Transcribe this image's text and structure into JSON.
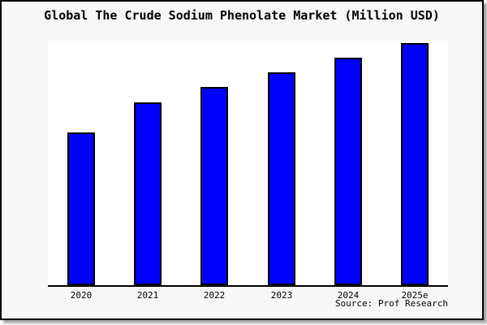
{
  "frame": {
    "background": "#f7f7f7",
    "border_color": "#000000",
    "shadow_color": "#999999"
  },
  "chart_data": {
    "type": "bar",
    "title": "Global The Crude Sodium Phenolate Market (Million USD)",
    "categories": [
      "2020",
      "2021",
      "2022",
      "2023",
      "2024",
      "2025e"
    ],
    "values": [
      63,
      75.5,
      82,
      88,
      94,
      100
    ],
    "value_scale": "relative index, 2025e = 100 (no y-axis labels shown in chart)",
    "xlabel": "",
    "ylabel": "",
    "ylim": [
      0,
      101
    ],
    "grid": false,
    "legend": null,
    "bar_color": "#0000ff",
    "bar_border_color": "#000000",
    "plot_background": "#ffffff",
    "source": "Source: Prof Research"
  }
}
